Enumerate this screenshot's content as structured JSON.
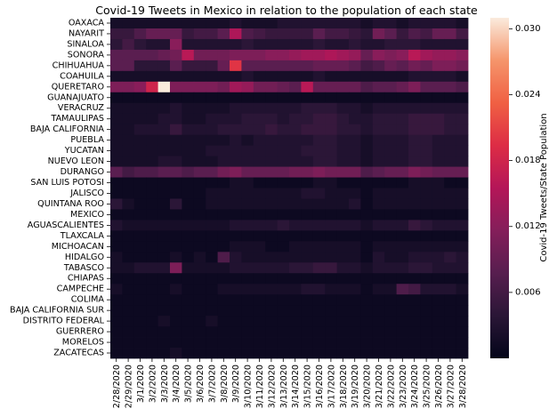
{
  "chart_data": {
    "type": "heatmap",
    "title": "Covid-19 Tweets in Mexico in relation to the population of each state",
    "colorbar_label": "Covid-19 Tweets/State Population",
    "colorbar_range": [
      0.0,
      0.031
    ],
    "colorbar_ticks": [
      0.006,
      0.012,
      0.018,
      0.024,
      0.03
    ],
    "colorbar_tick_labels": [
      "0.006",
      "0.012",
      "0.018",
      "0.024",
      "0.030"
    ],
    "colormap": "rocket",
    "rows": [
      "OAXACA",
      "NAYARIT",
      "SINALOA",
      "SONORA",
      "CHIHUAHUA",
      "COAHUILA",
      "QUERETARO",
      "GUANAJUATO",
      "VERACRUZ",
      "TAMAULIPAS",
      "BAJA CALIFORNIA",
      "PUEBLA",
      "YUCATAN",
      "NUEVO LEON",
      "DURANGO",
      "SAN LUIS POTOSI",
      "JALISCO",
      "QUINTANA ROO",
      "MEXICO",
      "AGUASCALIENTES",
      "TLAXCALA",
      "MICHOACAN",
      "HIDALGO",
      "TABASCO",
      "CHIAPAS",
      "CAMPECHE",
      "COLIMA",
      "BAJA CALIFORNIA SUR",
      "DISTRITO FEDERAL",
      "GUERRERO",
      "MORELOS",
      "ZACATECAS"
    ],
    "columns": [
      "2/28/2020",
      "2/29/2020",
      "3/1/2020",
      "3/2/2020",
      "3/3/2020",
      "3/4/2020",
      "3/5/2020",
      "3/6/2020",
      "3/7/2020",
      "3/8/2020",
      "3/9/2020",
      "3/10/2020",
      "3/11/2020",
      "3/12/2020",
      "3/13/2020",
      "3/14/2020",
      "3/15/2020",
      "3/16/2020",
      "3/17/2020",
      "3/18/2020",
      "3/19/2020",
      "3/20/2020",
      "3/21/2020",
      "3/22/2020",
      "3/23/2020",
      "3/24/2020",
      "3/25/2020",
      "3/26/2020",
      "3/27/2020",
      "3/28/2020"
    ],
    "values": [
      [
        0.002,
        0.002,
        0.002,
        0.002,
        0.002,
        0.002,
        0.002,
        0.002,
        0.002,
        0.002,
        0.003,
        0.002,
        0.002,
        0.002,
        0.003,
        0.003,
        0.003,
        0.003,
        0.003,
        0.003,
        0.003,
        0.002,
        0.003,
        0.003,
        0.002,
        0.003,
        0.003,
        0.003,
        0.003,
        0.002
      ],
      [
        0.005,
        0.005,
        0.007,
        0.009,
        0.009,
        0.009,
        0.005,
        0.006,
        0.006,
        0.008,
        0.015,
        0.007,
        0.006,
        0.005,
        0.005,
        0.005,
        0.005,
        0.008,
        0.006,
        0.006,
        0.005,
        0.004,
        0.01,
        0.008,
        0.005,
        0.007,
        0.006,
        0.009,
        0.009,
        0.006
      ],
      [
        0.004,
        0.006,
        0.004,
        0.003,
        0.003,
        0.012,
        0.003,
        0.003,
        0.003,
        0.003,
        0.003,
        0.004,
        0.003,
        0.003,
        0.003,
        0.003,
        0.003,
        0.004,
        0.003,
        0.003,
        0.004,
        0.003,
        0.003,
        0.004,
        0.004,
        0.004,
        0.003,
        0.003,
        0.003,
        0.003
      ],
      [
        0.008,
        0.008,
        0.008,
        0.008,
        0.009,
        0.01,
        0.016,
        0.01,
        0.01,
        0.01,
        0.011,
        0.011,
        0.011,
        0.012,
        0.012,
        0.013,
        0.014,
        0.014,
        0.015,
        0.014,
        0.013,
        0.009,
        0.012,
        0.011,
        0.012,
        0.016,
        0.014,
        0.013,
        0.013,
        0.012
      ],
      [
        0.008,
        0.008,
        0.004,
        0.004,
        0.004,
        0.008,
        0.005,
        0.005,
        0.005,
        0.009,
        0.02,
        0.008,
        0.008,
        0.008,
        0.008,
        0.008,
        0.008,
        0.009,
        0.009,
        0.009,
        0.008,
        0.006,
        0.007,
        0.009,
        0.008,
        0.01,
        0.009,
        0.011,
        0.011,
        0.01
      ],
      [
        0.002,
        0.002,
        0.002,
        0.002,
        0.002,
        0.002,
        0.002,
        0.002,
        0.002,
        0.002,
        0.002,
        0.003,
        0.002,
        0.002,
        0.002,
        0.002,
        0.002,
        0.003,
        0.002,
        0.002,
        0.002,
        0.002,
        0.002,
        0.002,
        0.002,
        0.003,
        0.003,
        0.003,
        0.003,
        0.002
      ],
      [
        0.011,
        0.011,
        0.012,
        0.018,
        0.031,
        0.011,
        0.011,
        0.011,
        0.011,
        0.01,
        0.014,
        0.013,
        0.01,
        0.01,
        0.009,
        0.008,
        0.016,
        0.009,
        0.009,
        0.009,
        0.009,
        0.007,
        0.008,
        0.008,
        0.009,
        0.011,
        0.008,
        0.008,
        0.008,
        0.007
      ],
      [
        0.001,
        0.001,
        0.001,
        0.001,
        0.001,
        0.001,
        0.001,
        0.001,
        0.001,
        0.001,
        0.001,
        0.001,
        0.001,
        0.001,
        0.001,
        0.001,
        0.001,
        0.001,
        0.001,
        0.001,
        0.001,
        0.001,
        0.001,
        0.001,
        0.001,
        0.001,
        0.001,
        0.001,
        0.001,
        0.001
      ],
      [
        0.002,
        0.002,
        0.002,
        0.002,
        0.002,
        0.003,
        0.002,
        0.002,
        0.002,
        0.002,
        0.003,
        0.003,
        0.003,
        0.003,
        0.003,
        0.003,
        0.004,
        0.004,
        0.004,
        0.003,
        0.003,
        0.002,
        0.003,
        0.003,
        0.003,
        0.003,
        0.003,
        0.003,
        0.003,
        0.003
      ],
      [
        0.002,
        0.002,
        0.002,
        0.002,
        0.003,
        0.003,
        0.002,
        0.002,
        0.003,
        0.003,
        0.003,
        0.004,
        0.004,
        0.004,
        0.003,
        0.004,
        0.004,
        0.005,
        0.005,
        0.004,
        0.003,
        0.003,
        0.004,
        0.004,
        0.004,
        0.005,
        0.005,
        0.005,
        0.004,
        0.004
      ],
      [
        0.002,
        0.002,
        0.003,
        0.003,
        0.003,
        0.005,
        0.003,
        0.003,
        0.003,
        0.004,
        0.004,
        0.004,
        0.004,
        0.005,
        0.004,
        0.004,
        0.005,
        0.005,
        0.005,
        0.004,
        0.004,
        0.003,
        0.004,
        0.004,
        0.004,
        0.005,
        0.005,
        0.005,
        0.004,
        0.004
      ],
      [
        0.002,
        0.002,
        0.002,
        0.002,
        0.002,
        0.002,
        0.002,
        0.002,
        0.002,
        0.002,
        0.003,
        0.002,
        0.003,
        0.003,
        0.003,
        0.003,
        0.003,
        0.004,
        0.004,
        0.003,
        0.003,
        0.002,
        0.003,
        0.003,
        0.003,
        0.004,
        0.004,
        0.003,
        0.003,
        0.003
      ],
      [
        0.002,
        0.002,
        0.002,
        0.002,
        0.002,
        0.002,
        0.002,
        0.002,
        0.003,
        0.003,
        0.003,
        0.003,
        0.003,
        0.003,
        0.003,
        0.003,
        0.004,
        0.004,
        0.004,
        0.003,
        0.003,
        0.002,
        0.003,
        0.003,
        0.003,
        0.004,
        0.004,
        0.003,
        0.003,
        0.003
      ],
      [
        0.002,
        0.002,
        0.002,
        0.002,
        0.003,
        0.003,
        0.002,
        0.002,
        0.002,
        0.003,
        0.003,
        0.003,
        0.003,
        0.003,
        0.003,
        0.003,
        0.003,
        0.004,
        0.004,
        0.003,
        0.003,
        0.002,
        0.003,
        0.003,
        0.003,
        0.004,
        0.004,
        0.003,
        0.003,
        0.003
      ],
      [
        0.008,
        0.006,
        0.007,
        0.007,
        0.008,
        0.008,
        0.007,
        0.008,
        0.008,
        0.01,
        0.011,
        0.009,
        0.009,
        0.009,
        0.009,
        0.01,
        0.01,
        0.011,
        0.01,
        0.01,
        0.01,
        0.007,
        0.008,
        0.009,
        0.009,
        0.011,
        0.01,
        0.009,
        0.009,
        0.009
      ],
      [
        0.001,
        0.001,
        0.001,
        0.001,
        0.001,
        0.001,
        0.001,
        0.001,
        0.001,
        0.001,
        0.002,
        0.002,
        0.001,
        0.001,
        0.001,
        0.001,
        0.001,
        0.002,
        0.002,
        0.001,
        0.001,
        0.001,
        0.001,
        0.001,
        0.001,
        0.002,
        0.002,
        0.002,
        0.001,
        0.001
      ],
      [
        0.001,
        0.001,
        0.001,
        0.001,
        0.001,
        0.001,
        0.001,
        0.001,
        0.002,
        0.002,
        0.002,
        0.002,
        0.002,
        0.002,
        0.002,
        0.002,
        0.003,
        0.003,
        0.002,
        0.002,
        0.002,
        0.001,
        0.002,
        0.002,
        0.002,
        0.002,
        0.002,
        0.002,
        0.002,
        0.002
      ],
      [
        0.004,
        0.002,
        0.001,
        0.001,
        0.001,
        0.004,
        0.001,
        0.001,
        0.002,
        0.002,
        0.002,
        0.002,
        0.002,
        0.002,
        0.002,
        0.002,
        0.002,
        0.002,
        0.002,
        0.002,
        0.003,
        0.001,
        0.002,
        0.002,
        0.002,
        0.002,
        0.002,
        0.002,
        0.002,
        0.002
      ],
      [
        0.001,
        0.001,
        0.001,
        0.001,
        0.001,
        0.001,
        0.001,
        0.001,
        0.001,
        0.001,
        0.001,
        0.001,
        0.001,
        0.001,
        0.001,
        0.001,
        0.001,
        0.001,
        0.001,
        0.001,
        0.001,
        0.001,
        0.001,
        0.001,
        0.001,
        0.001,
        0.001,
        0.001,
        0.001,
        0.001
      ],
      [
        0.003,
        0.002,
        0.002,
        0.002,
        0.002,
        0.002,
        0.002,
        0.002,
        0.002,
        0.002,
        0.003,
        0.003,
        0.003,
        0.003,
        0.004,
        0.003,
        0.003,
        0.003,
        0.003,
        0.003,
        0.003,
        0.002,
        0.003,
        0.003,
        0.003,
        0.005,
        0.004,
        0.003,
        0.003,
        0.003
      ],
      [
        0.001,
        0.001,
        0.001,
        0.001,
        0.001,
        0.001,
        0.001,
        0.001,
        0.001,
        0.001,
        0.001,
        0.001,
        0.001,
        0.001,
        0.001,
        0.001,
        0.001,
        0.001,
        0.001,
        0.001,
        0.001,
        0.001,
        0.001,
        0.001,
        0.001,
        0.001,
        0.001,
        0.001,
        0.001,
        0.001
      ],
      [
        0.001,
        0.001,
        0.001,
        0.001,
        0.001,
        0.001,
        0.001,
        0.001,
        0.001,
        0.001,
        0.002,
        0.002,
        0.002,
        0.001,
        0.001,
        0.002,
        0.002,
        0.002,
        0.002,
        0.002,
        0.002,
        0.001,
        0.002,
        0.002,
        0.002,
        0.002,
        0.002,
        0.002,
        0.002,
        0.002
      ],
      [
        0.002,
        0.001,
        0.001,
        0.001,
        0.001,
        0.002,
        0.001,
        0.002,
        0.001,
        0.007,
        0.003,
        0.002,
        0.002,
        0.002,
        0.002,
        0.002,
        0.002,
        0.002,
        0.002,
        0.002,
        0.002,
        0.001,
        0.003,
        0.002,
        0.002,
        0.003,
        0.003,
        0.003,
        0.004,
        0.003
      ],
      [
        0.002,
        0.002,
        0.003,
        0.003,
        0.003,
        0.011,
        0.002,
        0.002,
        0.002,
        0.002,
        0.003,
        0.003,
        0.003,
        0.003,
        0.003,
        0.004,
        0.004,
        0.005,
        0.005,
        0.003,
        0.003,
        0.002,
        0.003,
        0.003,
        0.003,
        0.004,
        0.004,
        0.003,
        0.003,
        0.003
      ],
      [
        0.001,
        0.001,
        0.001,
        0.001,
        0.001,
        0.001,
        0.001,
        0.001,
        0.001,
        0.001,
        0.001,
        0.001,
        0.001,
        0.001,
        0.001,
        0.001,
        0.001,
        0.001,
        0.001,
        0.001,
        0.001,
        0.001,
        0.001,
        0.001,
        0.001,
        0.001,
        0.001,
        0.001,
        0.001,
        0.001
      ],
      [
        0.002,
        0.001,
        0.001,
        0.001,
        0.001,
        0.002,
        0.001,
        0.001,
        0.001,
        0.002,
        0.002,
        0.002,
        0.002,
        0.002,
        0.002,
        0.002,
        0.003,
        0.003,
        0.002,
        0.002,
        0.002,
        0.001,
        0.002,
        0.002,
        0.007,
        0.006,
        0.003,
        0.003,
        0.003,
        0.002
      ],
      [
        0.001,
        0.001,
        0.001,
        0.001,
        0.001,
        0.001,
        0.001,
        0.001,
        0.001,
        0.001,
        0.001,
        0.001,
        0.001,
        0.001,
        0.001,
        0.001,
        0.001,
        0.001,
        0.001,
        0.001,
        0.001,
        0.001,
        0.001,
        0.001,
        0.001,
        0.001,
        0.001,
        0.001,
        0.001,
        0.001
      ],
      [
        0.001,
        0.001,
        0.001,
        0.001,
        0.001,
        0.001,
        0.001,
        0.001,
        0.001,
        0.001,
        0.001,
        0.001,
        0.001,
        0.001,
        0.001,
        0.001,
        0.001,
        0.001,
        0.001,
        0.001,
        0.001,
        0.001,
        0.001,
        0.001,
        0.001,
        0.001,
        0.001,
        0.001,
        0.001,
        0.001
      ],
      [
        0.001,
        0.001,
        0.001,
        0.001,
        0.002,
        0.001,
        0.001,
        0.001,
        0.002,
        0.001,
        0.001,
        0.001,
        0.001,
        0.001,
        0.001,
        0.001,
        0.001,
        0.001,
        0.001,
        0.001,
        0.001,
        0.001,
        0.001,
        0.001,
        0.001,
        0.001,
        0.001,
        0.001,
        0.001,
        0.001
      ],
      [
        0.001,
        0.001,
        0.001,
        0.001,
        0.001,
        0.001,
        0.001,
        0.001,
        0.001,
        0.001,
        0.001,
        0.001,
        0.001,
        0.001,
        0.001,
        0.001,
        0.001,
        0.001,
        0.001,
        0.001,
        0.001,
        0.001,
        0.001,
        0.001,
        0.001,
        0.001,
        0.001,
        0.001,
        0.001,
        0.001
      ],
      [
        0.001,
        0.001,
        0.001,
        0.001,
        0.001,
        0.001,
        0.001,
        0.001,
        0.001,
        0.001,
        0.001,
        0.001,
        0.001,
        0.001,
        0.001,
        0.001,
        0.001,
        0.001,
        0.001,
        0.001,
        0.001,
        0.001,
        0.001,
        0.001,
        0.001,
        0.001,
        0.001,
        0.001,
        0.001,
        0.001
      ],
      [
        0.001,
        0.001,
        0.001,
        0.001,
        0.001,
        0.002,
        0.001,
        0.001,
        0.001,
        0.001,
        0.001,
        0.001,
        0.001,
        0.001,
        0.001,
        0.001,
        0.001,
        0.001,
        0.001,
        0.001,
        0.001,
        0.001,
        0.001,
        0.001,
        0.001,
        0.001,
        0.001,
        0.001,
        0.001,
        0.001
      ]
    ]
  }
}
